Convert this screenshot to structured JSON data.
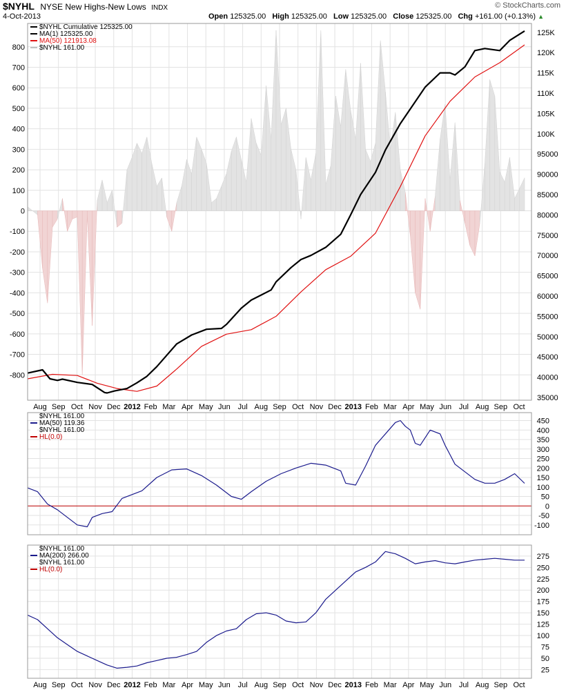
{
  "header": {
    "symbol": "$NYHL",
    "name": "NYSE New Highs-New Lows",
    "exchange": "INDX",
    "date": "4-Oct-2013",
    "open_label": "Open",
    "open": "125325.00",
    "high_label": "High",
    "high": "125325.00",
    "low_label": "Low",
    "low": "125325.00",
    "close_label": "Close",
    "close": "125325.00",
    "chg_label": "Chg",
    "chg": "+161.00 (+0.13%)",
    "watermark": "© StockCharts.com"
  },
  "colors": {
    "cumulative": "#000000",
    "ma50_main": "#e01010",
    "nyhl_pos": "#e3e3e3",
    "nyhl_neg": "#f1d4d4",
    "osc": "#1a1a8c",
    "hline": "#c00000"
  },
  "x_axis": {
    "labels": [
      "Aug",
      "Sep",
      "Oct",
      "Nov",
      "Dec",
      "2012",
      "Feb",
      "Mar",
      "Apr",
      "May",
      "Jun",
      "Jul",
      "Aug",
      "Sep",
      "Oct",
      "Nov",
      "Dec",
      "2013",
      "Feb",
      "Mar",
      "Apr",
      "May",
      "Jun",
      "Jul",
      "Aug",
      "Sep",
      "Oct"
    ],
    "bold": [
      "2012",
      "2013"
    ]
  },
  "chart_data": [
    {
      "type": "line",
      "panel": "main",
      "legend": [
        "$NYHL  Cumulative 125325.00",
        "MA(1) 125325.00",
        "MA(50) 121913.08",
        "$NYHL  161.00"
      ],
      "left_axis": {
        "ticks": [
          800,
          700,
          600,
          500,
          400,
          300,
          200,
          100,
          0,
          -100,
          -200,
          -300,
          -400,
          -500,
          -600,
          -700,
          -800
        ],
        "range": [
          -890,
          880
        ]
      },
      "right_axis": {
        "ticks": [
          "125K",
          "120K",
          "115K",
          "110K",
          "105K",
          "100K",
          "95000",
          "90000",
          "85000",
          "80000",
          "75000",
          "70000",
          "65000",
          "60000",
          "55000",
          "50000",
          "45000",
          "40000",
          "35000"
        ],
        "range": [
          35000,
          126500
        ]
      },
      "series": [
        {
          "name": "MA(1)",
          "axis": "right",
          "x": [
            0,
            0.03,
            0.045,
            0.06,
            0.07,
            0.1,
            0.13,
            0.155,
            0.16,
            0.175,
            0.2,
            0.22,
            0.24,
            0.26,
            0.3,
            0.33,
            0.36,
            0.39,
            0.4,
            0.43,
            0.45,
            0.49,
            0.5,
            0.53,
            0.55,
            0.57,
            0.6,
            0.63,
            0.65,
            0.67,
            0.7,
            0.72,
            0.75,
            0.8,
            0.83,
            0.85,
            0.86,
            0.88,
            0.9,
            0.92,
            0.95,
            0.97,
            1.0
          ],
          "y": [
            41000,
            41800,
            39600,
            39200,
            39500,
            38700,
            38200,
            36200,
            36100,
            36600,
            37200,
            38600,
            40200,
            42600,
            48200,
            50400,
            51800,
            52000,
            53000,
            57000,
            59000,
            61500,
            63500,
            67000,
            69000,
            70000,
            72000,
            75200,
            80000,
            85000,
            90500,
            96000,
            102500,
            111500,
            115000,
            115000,
            114500,
            116500,
            120500,
            121000,
            120500,
            123000,
            125325
          ]
        },
        {
          "name": "MA(50)",
          "axis": "right",
          "x": [
            0,
            0.05,
            0.1,
            0.14,
            0.18,
            0.22,
            0.26,
            0.3,
            0.35,
            0.4,
            0.45,
            0.5,
            0.55,
            0.6,
            0.65,
            0.7,
            0.75,
            0.8,
            0.85,
            0.9,
            0.95,
            1.0
          ],
          "y": [
            39600,
            40700,
            40400,
            38500,
            37200,
            36500,
            37800,
            42000,
            47600,
            50600,
            51700,
            55000,
            61000,
            66500,
            69800,
            75500,
            87000,
            99500,
            108000,
            114000,
            117500,
            121913
          ]
        },
        {
          "name": "$NYHL",
          "axis": "left",
          "x": [
            0,
            0.02,
            0.03,
            0.04,
            0.05,
            0.06,
            0.07,
            0.08,
            0.09,
            0.1,
            0.11,
            0.12,
            0.13,
            0.14,
            0.15,
            0.16,
            0.17,
            0.18,
            0.19,
            0.2,
            0.21,
            0.22,
            0.23,
            0.24,
            0.25,
            0.26,
            0.27,
            0.28,
            0.29,
            0.3,
            0.31,
            0.32,
            0.33,
            0.34,
            0.35,
            0.36,
            0.37,
            0.38,
            0.39,
            0.4,
            0.41,
            0.42,
            0.43,
            0.44,
            0.45,
            0.46,
            0.47,
            0.48,
            0.49,
            0.5,
            0.51,
            0.52,
            0.53,
            0.54,
            0.55,
            0.56,
            0.57,
            0.58,
            0.59,
            0.6,
            0.61,
            0.62,
            0.63,
            0.64,
            0.65,
            0.66,
            0.67,
            0.68,
            0.69,
            0.7,
            0.71,
            0.72,
            0.73,
            0.74,
            0.75,
            0.76,
            0.77,
            0.78,
            0.79,
            0.8,
            0.81,
            0.82,
            0.83,
            0.84,
            0.85,
            0.86,
            0.87,
            0.88,
            0.89,
            0.9,
            0.91,
            0.92,
            0.93,
            0.94,
            0.95,
            0.96,
            0.97,
            0.98,
            0.99,
            1.0
          ],
          "y": [
            20,
            -20,
            -280,
            -450,
            -80,
            -40,
            60,
            -100,
            -40,
            -30,
            -800,
            -20,
            -560,
            50,
            150,
            40,
            100,
            -80,
            -60,
            200,
            260,
            330,
            280,
            360,
            230,
            120,
            160,
            -30,
            -100,
            40,
            120,
            250,
            180,
            360,
            300,
            230,
            40,
            60,
            120,
            180,
            290,
            360,
            250,
            140,
            450,
            330,
            270,
            610,
            350,
            880,
            420,
            500,
            300,
            200,
            -40,
            260,
            150,
            280,
            880,
            130,
            220,
            560,
            410,
            690,
            490,
            350,
            720,
            300,
            240,
            330,
            830,
            580,
            300,
            480,
            200,
            90,
            -120,
            -400,
            -480,
            60,
            -100,
            70,
            350,
            520,
            150,
            430,
            50,
            -60,
            -170,
            -220,
            -60,
            230,
            640,
            560,
            190,
            140,
            260,
            60,
            110,
            161
          ]
        }
      ]
    },
    {
      "type": "line",
      "panel": "osc50",
      "legend": [
        "$NYHL  161.00",
        "MA(50) 119.36",
        "$NYHL  161.00",
        "HL(0.0)"
      ],
      "y_ticks": [
        450,
        400,
        350,
        300,
        250,
        200,
        150,
        100,
        50,
        0,
        -50,
        -100
      ],
      "ylim": [
        -130,
        470
      ],
      "hline": 0,
      "series": [
        {
          "name": "MA(50)",
          "x": [
            0,
            0.02,
            0.04,
            0.06,
            0.08,
            0.1,
            0.12,
            0.13,
            0.15,
            0.17,
            0.19,
            0.21,
            0.23,
            0.26,
            0.29,
            0.32,
            0.35,
            0.38,
            0.41,
            0.43,
            0.45,
            0.48,
            0.51,
            0.54,
            0.57,
            0.6,
            0.63,
            0.64,
            0.66,
            0.68,
            0.7,
            0.72,
            0.74,
            0.75,
            0.76,
            0.77,
            0.78,
            0.79,
            0.81,
            0.83,
            0.84,
            0.85,
            0.86,
            0.88,
            0.9,
            0.92,
            0.94,
            0.96,
            0.98,
            1.0
          ],
          "y": [
            95,
            75,
            10,
            -20,
            -60,
            -100,
            -110,
            -60,
            -40,
            -30,
            40,
            60,
            80,
            150,
            190,
            195,
            160,
            110,
            50,
            35,
            75,
            130,
            170,
            200,
            225,
            215,
            185,
            120,
            110,
            210,
            320,
            380,
            440,
            450,
            420,
            400,
            330,
            320,
            400,
            380,
            320,
            270,
            220,
            180,
            140,
            120,
            120,
            140,
            170,
            119
          ]
        }
      ]
    },
    {
      "type": "line",
      "panel": "osc200",
      "legend": [
        "$NYHL  161.00",
        "MA(200) 266.00",
        "$NYHL  161.00",
        "HL(0.0)"
      ],
      "y_ticks": [
        275,
        250,
        225,
        200,
        175,
        150,
        125,
        100,
        75,
        50,
        25
      ],
      "ylim": [
        15,
        290
      ],
      "series": [
        {
          "name": "MA(200)",
          "x": [
            0,
            0.02,
            0.04,
            0.06,
            0.08,
            0.1,
            0.12,
            0.14,
            0.16,
            0.18,
            0.2,
            0.22,
            0.24,
            0.26,
            0.28,
            0.3,
            0.32,
            0.34,
            0.36,
            0.38,
            0.4,
            0.42,
            0.44,
            0.46,
            0.48,
            0.5,
            0.52,
            0.54,
            0.56,
            0.58,
            0.6,
            0.62,
            0.64,
            0.66,
            0.68,
            0.7,
            0.72,
            0.74,
            0.76,
            0.78,
            0.8,
            0.82,
            0.84,
            0.86,
            0.88,
            0.9,
            0.92,
            0.94,
            0.96,
            0.98,
            1.0
          ],
          "y": [
            145,
            135,
            115,
            95,
            80,
            65,
            55,
            45,
            35,
            28,
            30,
            33,
            40,
            45,
            50,
            52,
            58,
            65,
            85,
            100,
            110,
            115,
            135,
            148,
            150,
            145,
            132,
            128,
            130,
            150,
            180,
            200,
            220,
            240,
            250,
            262,
            285,
            280,
            270,
            258,
            262,
            265,
            260,
            258,
            262,
            266,
            268,
            270,
            268,
            266,
            266
          ]
        }
      ]
    }
  ]
}
